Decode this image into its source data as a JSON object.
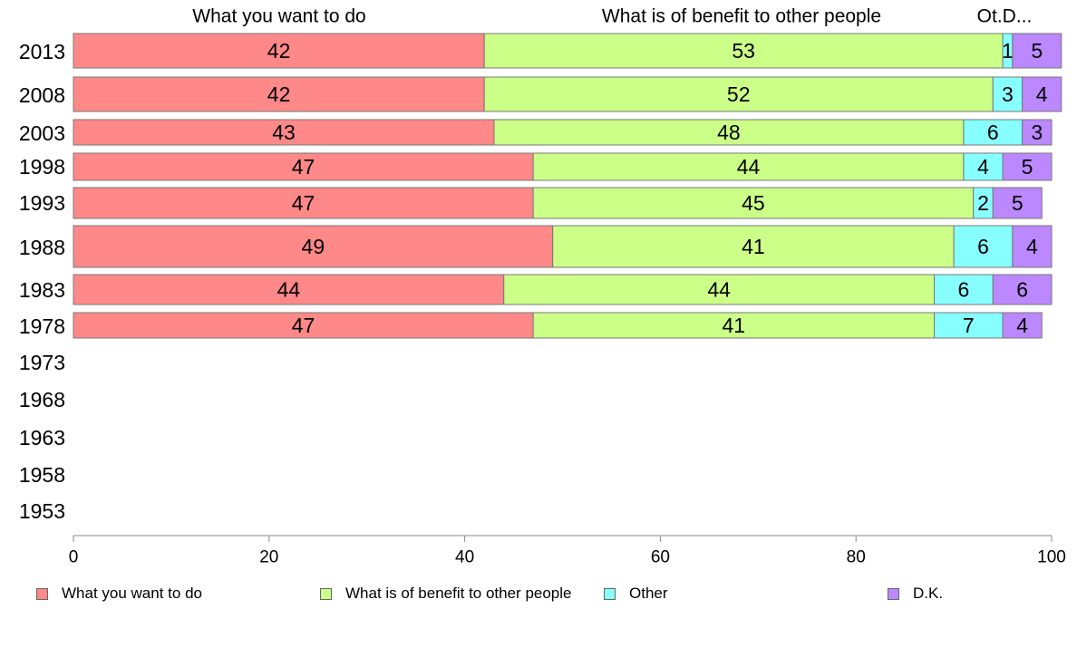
{
  "chart_data": {
    "type": "bar",
    "orientation": "horizontal",
    "stacked": true,
    "categories": [
      "2013",
      "2008",
      "2003",
      "1998",
      "1993",
      "1988",
      "1983",
      "1978",
      "1973",
      "1968",
      "1963",
      "1958",
      "1953"
    ],
    "series": [
      {
        "name": "What you want to do",
        "color": "#ff8888",
        "values": [
          42,
          42,
          43,
          47,
          47,
          49,
          44,
          47,
          null,
          null,
          null,
          null,
          null
        ]
      },
      {
        "name": "What is of benefit to other people",
        "color": "#ccff88",
        "values": [
          53,
          52,
          48,
          44,
          45,
          41,
          44,
          41,
          null,
          null,
          null,
          null,
          null
        ]
      },
      {
        "name": "Other",
        "color": "#88ffff",
        "values": [
          1,
          3,
          6,
          4,
          2,
          6,
          6,
          7,
          null,
          null,
          null,
          null,
          null
        ]
      },
      {
        "name": "D.K.",
        "color": "#bb88ff",
        "values": [
          5,
          4,
          3,
          5,
          5,
          4,
          6,
          4,
          null,
          null,
          null,
          null,
          null
        ]
      }
    ],
    "column_headers": [
      "What you want to do",
      "What is of benefit to other people",
      "Ot.D..."
    ],
    "xlim": [
      0,
      100
    ],
    "xticks": [
      0,
      20,
      40,
      60,
      80,
      100
    ],
    "grid": false,
    "legend_position": "bottom"
  }
}
